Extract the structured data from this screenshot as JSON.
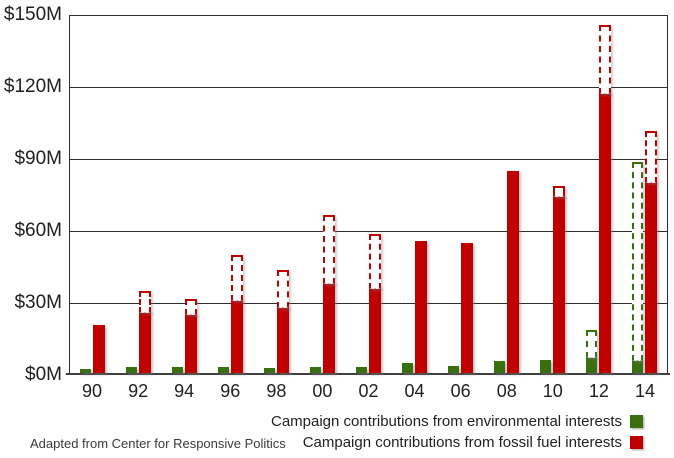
{
  "chart_data": {
    "type": "bar",
    "title": "",
    "categories": [
      "90",
      "92",
      "94",
      "96",
      "98",
      "00",
      "02",
      "04",
      "06",
      "08",
      "10",
      "12",
      "14"
    ],
    "series": [
      {
        "name": "Campaign contributions from environmental interests",
        "color": "#3A6F0F",
        "values": [
          1.5,
          2.5,
          2.5,
          2.5,
          2,
          2.5,
          2.5,
          4,
          3,
          5,
          5.5,
          7,
          6
        ],
        "dashed_totals": [
          null,
          null,
          null,
          null,
          null,
          null,
          null,
          null,
          null,
          null,
          null,
          18,
          88
        ]
      },
      {
        "name": "Campaign contributions from fossil fuel interests",
        "color": "#C00000",
        "values": [
          20,
          26,
          25,
          31,
          28,
          38,
          36,
          55,
          54,
          84,
          74,
          117,
          80
        ],
        "dashed_totals": [
          null,
          34,
          31,
          49,
          43,
          66,
          58,
          null,
          null,
          null,
          78,
          145,
          101
        ]
      }
    ],
    "y_ticks": [
      "$0M",
      "$30M",
      "$60M",
      "$90M",
      "$120M",
      "$150M"
    ],
    "y_tick_values": [
      0,
      30,
      60,
      90,
      120,
      150
    ],
    "ylim": [
      0,
      150
    ],
    "grid": true,
    "legend_position": "bottom-right"
  },
  "legend": {
    "items": [
      {
        "label": "Campaign contributions from environmental interests",
        "color": "#3A6F0F"
      },
      {
        "label": "Campaign contributions from fossil fuel interests",
        "color": "#C00000"
      }
    ]
  },
  "footnote": "Adapted from Center for Responsive Politics"
}
